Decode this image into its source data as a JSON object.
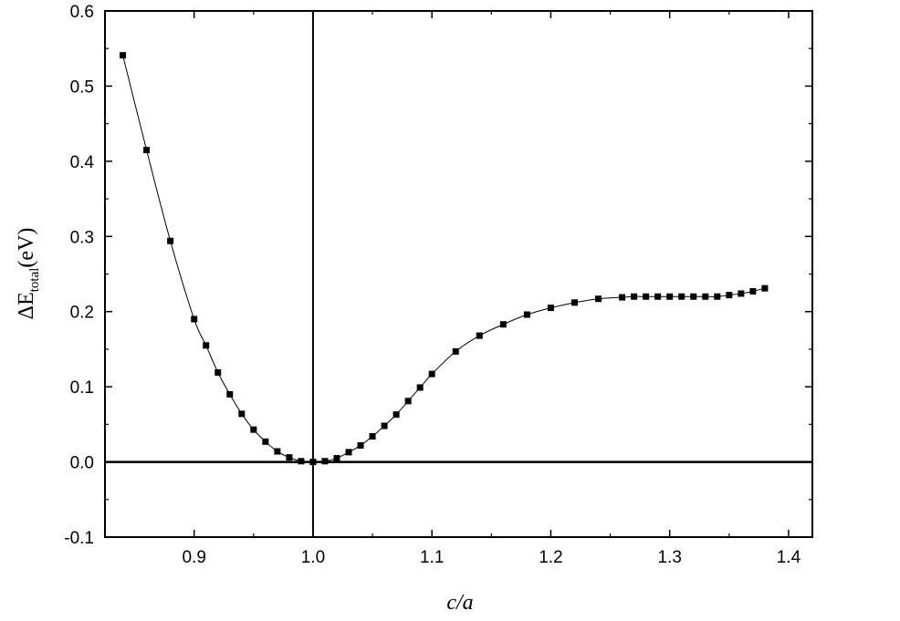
{
  "chart_data": {
    "type": "scatter",
    "xlabel": "c/a",
    "ylabel": {
      "prefix": "ΔE",
      "subscript": "total",
      "suffix": "(eV)"
    },
    "xlim": [
      0.825,
      1.42
    ],
    "ylim": [
      -0.1,
      0.6
    ],
    "xticks": [
      {
        "value": 0.9,
        "label": "0.9"
      },
      {
        "value": 1.0,
        "label": "1.0"
      },
      {
        "value": 1.1,
        "label": "1.1"
      },
      {
        "value": 1.2,
        "label": "1.2"
      },
      {
        "value": 1.3,
        "label": "1.3"
      },
      {
        "value": 1.4,
        "label": "1.4"
      }
    ],
    "yticks": [
      {
        "value": -0.1,
        "label": "-0.1"
      },
      {
        "value": 0.0,
        "label": "0.0"
      },
      {
        "value": 0.1,
        "label": "0.1"
      },
      {
        "value": 0.2,
        "label": "0.2"
      },
      {
        "value": 0.3,
        "label": "0.3"
      },
      {
        "value": 0.4,
        "label": "0.4"
      },
      {
        "value": 0.5,
        "label": "0.5"
      },
      {
        "value": 0.6,
        "label": "0.6"
      }
    ],
    "reference_lines": {
      "x": 1.0,
      "y": 0.0
    },
    "grid": false,
    "legend": "none",
    "marker": "square",
    "line_connected": true,
    "series": [
      {
        "x": [
          0.84,
          0.86,
          0.88,
          0.9,
          0.91,
          0.92,
          0.93,
          0.94,
          0.95,
          0.96,
          0.97,
          0.98,
          0.99,
          1.0,
          1.01,
          1.02,
          1.03,
          1.04,
          1.05,
          1.06,
          1.07,
          1.08,
          1.09,
          1.1,
          1.12,
          1.14,
          1.16,
          1.18,
          1.2,
          1.22,
          1.24,
          1.26,
          1.27,
          1.28,
          1.29,
          1.3,
          1.31,
          1.32,
          1.33,
          1.34,
          1.35,
          1.36,
          1.37,
          1.38
        ],
        "y": [
          0.541,
          0.415,
          0.294,
          0.19,
          0.155,
          0.119,
          0.09,
          0.064,
          0.043,
          0.027,
          0.014,
          0.006,
          0.001,
          0.0,
          0.001,
          0.005,
          0.013,
          0.022,
          0.034,
          0.048,
          0.063,
          0.081,
          0.099,
          0.117,
          0.147,
          0.168,
          0.183,
          0.196,
          0.205,
          0.212,
          0.217,
          0.219,
          0.22,
          0.22,
          0.22,
          0.22,
          0.22,
          0.22,
          0.22,
          0.22,
          0.222,
          0.224,
          0.227,
          0.231
        ]
      }
    ]
  }
}
